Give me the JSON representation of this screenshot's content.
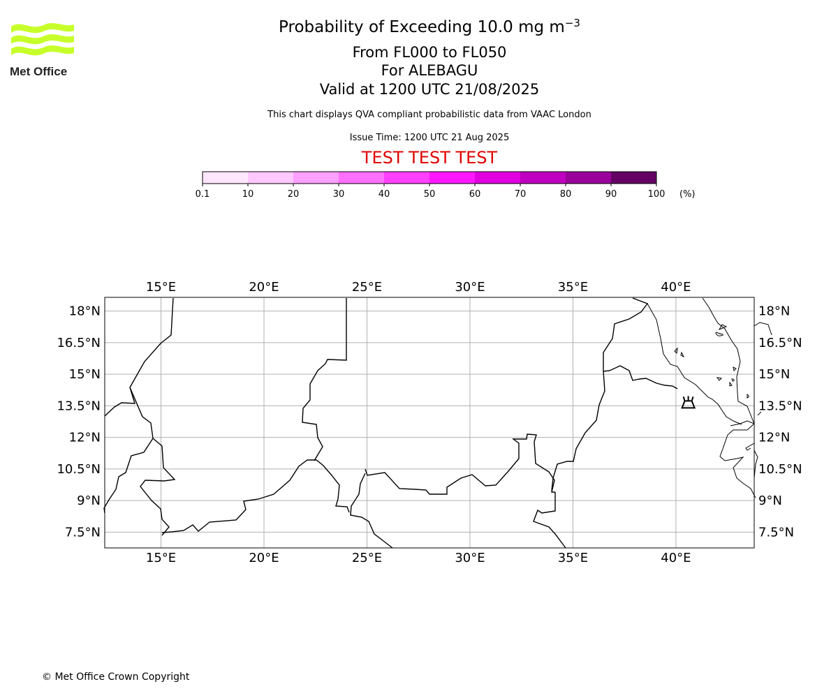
{
  "header": {
    "title_main": "Probability of Exceeding 10.0 mg m",
    "title_exp": "−3",
    "flight_levels": "From FL000 to FL050",
    "volcano_line": "For ALEBAGU",
    "valid_line": "Valid at 1200 UTC 21/08/2025",
    "description": "This chart displays QVA compliant probabilistic data from VAAC London",
    "issue_time": "Issue Time: 1200 UTC 21 Aug 2025",
    "test_banner": "TEST TEST TEST"
  },
  "logo": {
    "text": "Met Office",
    "wave_color": "#c7ff2a"
  },
  "colorbar": {
    "unit": "(%)",
    "ticks": [
      "0.1",
      "10",
      "20",
      "30",
      "40",
      "50",
      "60",
      "70",
      "80",
      "90",
      "100"
    ],
    "colors": [
      "#ffe6ff",
      "#ffc8ff",
      "#ff9fff",
      "#ff70ff",
      "#ff40ff",
      "#ff18ff",
      "#e000e0",
      "#c000c0",
      "#9a009a",
      "#640064"
    ]
  },
  "map": {
    "lon_ticks": [
      "15°E",
      "20°E",
      "25°E",
      "30°E",
      "35°E",
      "40°E"
    ],
    "lat_ticks": [
      "18°N",
      "16.5°N",
      "15°N",
      "13.5°N",
      "12°N",
      "10.5°N",
      "9°N",
      "7.5°N"
    ],
    "lon_values": [
      15,
      20,
      25,
      30,
      35,
      40
    ],
    "lat_values": [
      18,
      16.5,
      15,
      13.5,
      12,
      10.5,
      9,
      7.5
    ],
    "extent": {
      "lon_min": 12.27,
      "lon_max": 43.8,
      "lat_min": 6.75,
      "lat_max": 18.65
    },
    "volcano": {
      "name": "ALEBAGU",
      "lon": 40.6,
      "lat": 13.5,
      "icon": "volcano-icon"
    }
  },
  "footer": {
    "copyright": "© Met Office Crown Copyright"
  }
}
